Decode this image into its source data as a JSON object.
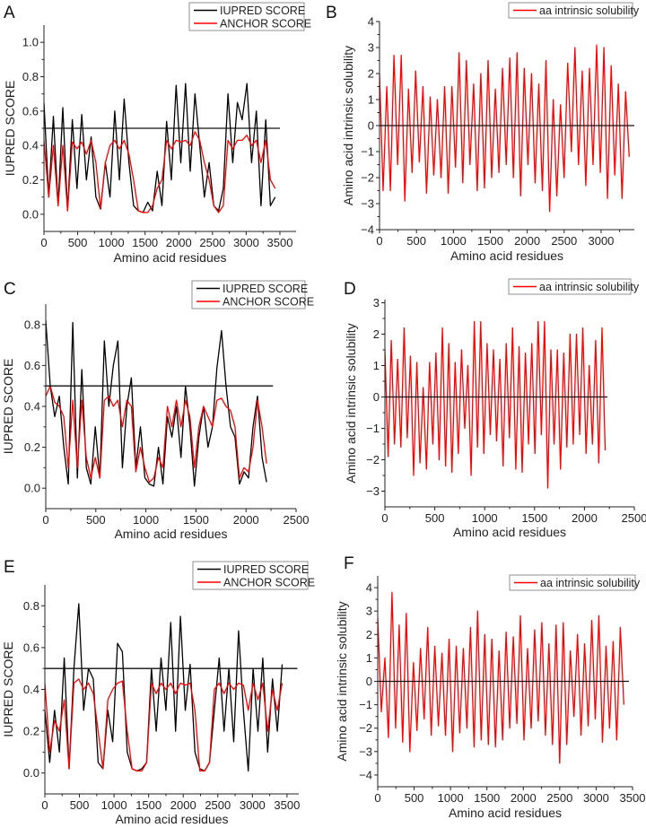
{
  "chart_data": [
    {
      "panel": "A",
      "type": "line",
      "xlabel": "Amino acid residues",
      "ylabel": "IUPRED SCORE",
      "xlim": [
        0,
        3740
      ],
      "ylim": [
        -0.1,
        1.1
      ],
      "xticks": [
        0,
        500,
        1000,
        1500,
        2000,
        2500,
        3000,
        3500
      ],
      "yticks": [
        "0.0",
        "0.2",
        "0.4",
        "0.6",
        "0.8",
        "1.0"
      ],
      "ref_line": {
        "y": 0.5,
        "x_end": 3500
      },
      "legend": "top-right",
      "x_step": 70,
      "series": [
        {
          "name": "IUPRED SCORE",
          "color": "#000000",
          "values": [
            0.65,
            0.1,
            0.57,
            0.05,
            0.62,
            0.02,
            0.55,
            0.15,
            0.58,
            0.2,
            0.45,
            0.1,
            0.03,
            0.3,
            0.1,
            0.6,
            0.2,
            0.67,
            0.3,
            0.05,
            0.02,
            0.01,
            0.07,
            0.02,
            0.25,
            0.05,
            0.54,
            0.2,
            0.75,
            0.3,
            0.76,
            0.25,
            0.7,
            0.4,
            0.1,
            0.3,
            0.05,
            0.02,
            0.15,
            0.7,
            0.3,
            0.65,
            0.55,
            0.76,
            0.3,
            0.6,
            0.05,
            0.55,
            0.05,
            0.1
          ]
        },
        {
          "name": "ANCHOR SCORE",
          "color": "#ff0000",
          "values": [
            0.43,
            0.1,
            0.4,
            0.05,
            0.4,
            0.02,
            0.42,
            0.38,
            0.42,
            0.35,
            0.43,
            0.3,
            0.03,
            0.3,
            0.4,
            0.43,
            0.38,
            0.43,
            0.35,
            0.2,
            0.02,
            0.01,
            0.01,
            0.05,
            0.15,
            0.2,
            0.43,
            0.38,
            0.43,
            0.42,
            0.43,
            0.4,
            0.48,
            0.43,
            0.3,
            0.2,
            0.05,
            0.01,
            0.05,
            0.43,
            0.38,
            0.43,
            0.43,
            0.46,
            0.4,
            0.43,
            0.3,
            0.43,
            0.2,
            0.15
          ]
        }
      ]
    },
    {
      "panel": "B",
      "type": "line",
      "xlabel": "Amino acid residues",
      "ylabel": "Amino acid intrinsic solubility",
      "xlim": [
        0,
        3450
      ],
      "ylim": [
        -4,
        4
      ],
      "xticks": [
        0,
        500,
        1000,
        1500,
        2000,
        2500,
        3000
      ],
      "yticks": [
        "-4",
        "-3",
        "-2",
        "-1",
        "0",
        "1",
        "2",
        "3",
        "4"
      ],
      "ref_line": {
        "y": 0,
        "x_end": 3450
      },
      "legend": "top-right",
      "x_step": 49,
      "series": [
        {
          "name": "aa intrinsic solubility",
          "color": "#ff0000",
          "values": [
            2,
            -2.5,
            1.5,
            -2.5,
            2.7,
            -1.5,
            2.7,
            -2.9,
            1.4,
            -1.8,
            2.1,
            -1.4,
            1.5,
            -2.6,
            1.1,
            -1.9,
            1.0,
            -2.0,
            1.5,
            -2.6,
            1.5,
            -1.6,
            2.8,
            -2.2,
            2.5,
            -1.5,
            1.6,
            -2.5,
            2.0,
            -2.4,
            2.5,
            -2.0,
            1.4,
            -1.8,
            2.2,
            -1.5,
            2.6,
            -2.0,
            2.8,
            -2.7,
            2.2,
            -1.5,
            2.0,
            -2.2,
            1.6,
            -2.5,
            2.5,
            -3.3,
            1.0,
            -2.7,
            0.8,
            -2.0,
            2.4,
            -1.0,
            3.0,
            -1.5,
            2.1,
            -2.3,
            2.2,
            -1.5,
            3.1,
            -1.8,
            3.0,
            -2.8,
            2.3,
            -1.9,
            1.6,
            -2.8,
            1.3,
            -1.2
          ]
        }
      ]
    },
    {
      "panel": "C",
      "type": "line",
      "xlabel": "Amino acid residues",
      "ylabel": "IUPRED SCORE",
      "xlim": [
        0,
        2500
      ],
      "ylim": [
        -0.1,
        0.9
      ],
      "xticks": [
        0,
        500,
        1000,
        1500,
        2000,
        2500
      ],
      "yticks": [
        "0.0",
        "0.2",
        "0.4",
        "0.6",
        "0.8"
      ],
      "ref_line": {
        "y": 0.5,
        "x_end": 2270
      },
      "legend": "top-right",
      "x_step": 45,
      "series": [
        {
          "name": "IUPRED SCORE",
          "color": "#000000",
          "values": [
            0.82,
            0.5,
            0.35,
            0.45,
            0.2,
            0.02,
            0.81,
            0.05,
            0.58,
            0.1,
            0.02,
            0.3,
            0.05,
            0.72,
            0.4,
            0.6,
            0.72,
            0.1,
            0.4,
            0.54,
            0.1,
            0.3,
            0.05,
            0.02,
            0.01,
            0.2,
            0.02,
            0.35,
            0.25,
            0.4,
            0.15,
            0.5,
            0.3,
            0.01,
            0.25,
            0.4,
            0.2,
            0.3,
            0.59,
            0.77,
            0.5,
            0.3,
            0.25,
            0.02,
            0.08,
            0.05,
            0.3,
            0.45,
            0.15,
            0.03
          ]
        },
        {
          "name": "ANCHOR SCORE",
          "color": "#ff0000",
          "values": [
            0.45,
            0.5,
            0.42,
            0.4,
            0.35,
            0.1,
            0.43,
            0.1,
            0.43,
            0.15,
            0.05,
            0.15,
            0.05,
            0.43,
            0.45,
            0.4,
            0.43,
            0.3,
            0.43,
            0.4,
            0.08,
            0.2,
            0.1,
            0.03,
            0.05,
            0.15,
            0.1,
            0.4,
            0.3,
            0.43,
            0.3,
            0.43,
            0.35,
            0.1,
            0.3,
            0.4,
            0.35,
            0.3,
            0.43,
            0.44,
            0.4,
            0.38,
            0.3,
            0.05,
            0.1,
            0.08,
            0.2,
            0.43,
            0.3,
            0.12
          ]
        }
      ]
    },
    {
      "panel": "D",
      "type": "line",
      "xlabel": "Amino acid residues",
      "ylabel": "Amino acid intrinsic solubility",
      "xlim": [
        0,
        2500
      ],
      "ylim": [
        -3.5,
        3.1
      ],
      "xticks": [
        0,
        500,
        1000,
        1500,
        2000,
        2500
      ],
      "yticks": [
        "-3",
        "-2",
        "-1",
        "0",
        "1",
        "2",
        "3"
      ],
      "ref_line": {
        "y": 0,
        "x_end": 2230
      },
      "legend": "top-right",
      "x_step": 32,
      "series": [
        {
          "name": "aa intrinsic solubility",
          "color": "#ff0000",
          "values": [
            1.5,
            -1.9,
            1.8,
            -1.5,
            1.2,
            -1.6,
            2.2,
            -1.3,
            1.3,
            -2.5,
            1.1,
            -2.1,
            0.3,
            -2.3,
            1.1,
            -1.5,
            1.4,
            -2.0,
            2.2,
            -2.2,
            1.7,
            -2.4,
            1.1,
            -1.8,
            1.5,
            -1.0,
            1.0,
            -2.5,
            2.4,
            -1.6,
            2.4,
            -1.8,
            1.7,
            -1.2,
            1.5,
            -1.4,
            1.2,
            -2.2,
            1.7,
            -1.3,
            2.2,
            -2.3,
            1.6,
            -2.4,
            1.4,
            -1.5,
            1.7,
            -1.8,
            2.4,
            -1.2,
            2.4,
            -2.9,
            1.5,
            -1.5,
            1.5,
            -2.3,
            1.4,
            -1.6,
            2.0,
            -1.5,
            2.0,
            -1.2,
            2.2,
            -1.8,
            1.0,
            -1.5,
            1.8,
            -2.1,
            2.2,
            -1.7
          ]
        }
      ]
    },
    {
      "panel": "E",
      "type": "line",
      "xlabel": "Amino acid residues",
      "ylabel": "IUPRED SCORE",
      "xlim": [
        0,
        3670
      ],
      "ylim": [
        -0.1,
        0.9
      ],
      "xticks": [
        0,
        500,
        1000,
        1500,
        2000,
        2500,
        3000,
        3500
      ],
      "yticks": [
        "0.0",
        "0.2",
        "0.4",
        "0.6",
        "0.8"
      ],
      "ref_line": {
        "y": 0.5,
        "x_end": 3650
      },
      "legend": "top-right",
      "x_step": 70,
      "series": [
        {
          "name": "IUPRED SCORE",
          "color": "#000000",
          "values": [
            0.3,
            0.05,
            0.3,
            0.1,
            0.55,
            0.02,
            0.5,
            0.81,
            0.3,
            0.5,
            0.45,
            0.05,
            0.02,
            0.3,
            0.15,
            0.62,
            0.58,
            0.1,
            0.02,
            0.01,
            0.02,
            0.05,
            0.5,
            0.2,
            0.55,
            0.3,
            0.72,
            0.2,
            0.75,
            0.3,
            0.52,
            0.1,
            0.02,
            0.01,
            0.05,
            0.3,
            0.55,
            0.2,
            0.5,
            0.15,
            0.68,
            0.3,
            0.01,
            0.5,
            0.2,
            0.55,
            0.1,
            0.45,
            0.2,
            0.52
          ]
        },
        {
          "name": "ANCHOR SCORE",
          "color": "#ff0000",
          "values": [
            0.43,
            0.1,
            0.25,
            0.2,
            0.35,
            0.02,
            0.43,
            0.45,
            0.4,
            0.43,
            0.38,
            0.2,
            0.02,
            0.35,
            0.4,
            0.43,
            0.44,
            0.2,
            0.02,
            0.01,
            0.01,
            0.05,
            0.43,
            0.38,
            0.43,
            0.4,
            0.43,
            0.38,
            0.43,
            0.42,
            0.43,
            0.3,
            0.01,
            0.01,
            0.05,
            0.4,
            0.43,
            0.38,
            0.43,
            0.4,
            0.43,
            0.42,
            0.3,
            0.43,
            0.35,
            0.43,
            0.2,
            0.4,
            0.3,
            0.43
          ]
        }
      ]
    },
    {
      "panel": "F",
      "type": "line",
      "xlabel": "Amino acid residues",
      "ylabel": "Amino acid intrinsic solubility",
      "xlim": [
        0,
        3500
      ],
      "ylim": [
        -4.5,
        4.5
      ],
      "xticks": [
        0,
        500,
        1000,
        1500,
        2000,
        2500,
        3000,
        3500
      ],
      "yticks": [
        "-4",
        "-3",
        "-2",
        "-1",
        "0",
        "1",
        "2",
        "3",
        "4"
      ],
      "ref_line": {
        "y": 0,
        "x_end": 3450
      },
      "legend": "top-right",
      "x_step": 49,
      "series": [
        {
          "name": "aa intrinsic solubility",
          "color": "#ff0000",
          "values": [
            2.7,
            -1.3,
            1.0,
            -2.4,
            3.8,
            -2.0,
            2.4,
            -2.6,
            2.9,
            -3.0,
            0.8,
            -2.1,
            1.4,
            -1.6,
            2.3,
            -2.3,
            1.5,
            -1.9,
            1.2,
            -2.3,
            1.8,
            -3.0,
            1.5,
            -2.2,
            1.4,
            -2.0,
            2.3,
            -2.8,
            3.0,
            -2.5,
            2.0,
            -2.7,
            1.8,
            -2.8,
            1.3,
            -2.5,
            2.1,
            -2.0,
            1.9,
            -1.8,
            2.8,
            -2.5,
            1.4,
            -2.0,
            2.2,
            -1.7,
            2.5,
            -2.3,
            1.6,
            -2.7,
            2.4,
            -3.5,
            2.5,
            -2.7,
            1.3,
            -1.5,
            2.0,
            -2.3,
            1.6,
            -1.9,
            2.6,
            -1.6,
            2.8,
            -2.6,
            1.5,
            -2.0,
            1.7,
            -2.5,
            2.3,
            -1.0
          ]
        }
      ]
    }
  ]
}
